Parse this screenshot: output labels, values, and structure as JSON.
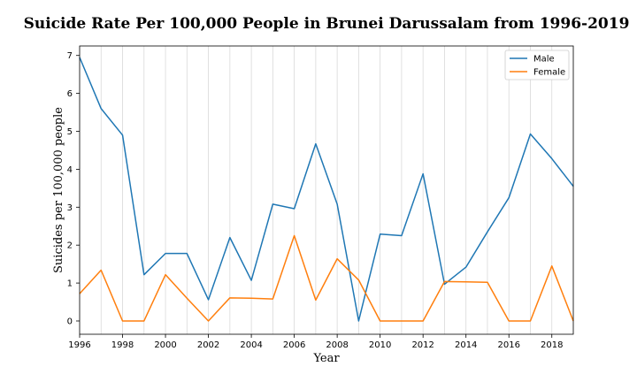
{
  "chart_data": {
    "type": "line",
    "title": "Suicide Rate Per 100,000 People in Brunei Darussalam from 1996-2019",
    "xlabel": "Year",
    "ylabel": "Suicides per 100,000 people",
    "xlim": [
      1996,
      2019
    ],
    "ylim": [
      -0.35,
      7.25
    ],
    "grid": "vertical",
    "legend_position": "upper right",
    "x_ticks": [
      1996,
      1998,
      2000,
      2002,
      2004,
      2006,
      2008,
      2010,
      2012,
      2014,
      2016,
      2018
    ],
    "y_ticks": [
      0,
      1,
      2,
      3,
      4,
      5,
      6,
      7
    ],
    "x": [
      1996,
      1997,
      1998,
      1999,
      2000,
      2001,
      2002,
      2003,
      2004,
      2005,
      2006,
      2007,
      2008,
      2009,
      2010,
      2011,
      2012,
      2013,
      2014,
      2015,
      2016,
      2017,
      2018,
      2019
    ],
    "series": [
      {
        "name": "Male",
        "color": "#1f77b4",
        "values": [
          6.95,
          5.6,
          4.9,
          1.22,
          1.78,
          1.78,
          0.56,
          2.2,
          1.07,
          3.08,
          2.96,
          4.67,
          3.08,
          0.0,
          2.29,
          2.25,
          3.88,
          0.97,
          1.42,
          2.35,
          3.25,
          4.93,
          4.28,
          3.55
        ]
      },
      {
        "name": "Female",
        "color": "#ff7f0e",
        "values": [
          0.72,
          1.34,
          0.0,
          0.0,
          1.22,
          0.6,
          0.0,
          0.61,
          0.6,
          0.58,
          2.25,
          0.55,
          1.64,
          1.08,
          0.0,
          0.0,
          0.0,
          1.04,
          1.03,
          1.02,
          0.0,
          0.0,
          1.45,
          0.0
        ]
      }
    ]
  }
}
